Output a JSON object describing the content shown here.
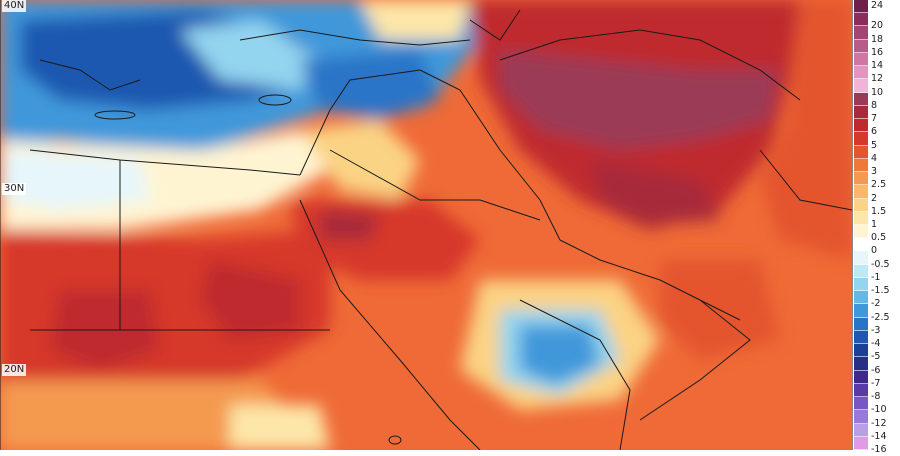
{
  "map": {
    "lat_labels": [
      "40N",
      "30N",
      "20N"
    ]
  },
  "legend": {
    "items": [
      {
        "label": "24",
        "color": "#6e1f4b"
      },
      {
        "label": "20",
        "color": "#8c2c5e"
      },
      {
        "label": "18",
        "color": "#a24474"
      },
      {
        "label": "16",
        "color": "#b85b8a"
      },
      {
        "label": "14",
        "color": "#cf76a4"
      },
      {
        "label": "12",
        "color": "#e394c0"
      },
      {
        "label": "10",
        "color": "#f0b4d8"
      },
      {
        "label": "8",
        "color": "#9b3a56"
      },
      {
        "label": "7",
        "color": "#a72a3a"
      },
      {
        "label": "6",
        "color": "#bf2a2e"
      },
      {
        "label": "5",
        "color": "#d6392c"
      },
      {
        "label": "4",
        "color": "#e4552e"
      },
      {
        "label": "3",
        "color": "#ee7a3a"
      },
      {
        "label": "2.5",
        "color": "#f49a50"
      },
      {
        "label": "2",
        "color": "#f8b868"
      },
      {
        "label": "1.5",
        "color": "#fbd384"
      },
      {
        "label": "1",
        "color": "#fde7a8"
      },
      {
        "label": "0.5",
        "color": "#fff4d2"
      },
      {
        "label": "0",
        "color": "#ffffff"
      },
      {
        "label": "-0.5",
        "color": "#e6f6fb"
      },
      {
        "label": "-1",
        "color": "#bfe8f6"
      },
      {
        "label": "-1.5",
        "color": "#93d4ef"
      },
      {
        "label": "-2",
        "color": "#63b8e6"
      },
      {
        "label": "-2.5",
        "color": "#3f98da"
      },
      {
        "label": "-3",
        "color": "#2a74c7"
      },
      {
        "label": "-4",
        "color": "#1f58b0"
      },
      {
        "label": "-5",
        "color": "#1c3f97"
      },
      {
        "label": "-6",
        "color": "#2a2f86"
      },
      {
        "label": "-7",
        "color": "#3d2a8c"
      },
      {
        "label": "-8",
        "color": "#5a3aa6"
      },
      {
        "label": "-10",
        "color": "#7a55c4"
      },
      {
        "label": "-12",
        "color": "#9a78d8"
      },
      {
        "label": "-14",
        "color": "#bb9ee6"
      },
      {
        "label": "-16",
        "color": "#e09ae8"
      }
    ]
  },
  "colors": {
    "background": "#ef6a36",
    "border_line": "#1a1a1a"
  }
}
